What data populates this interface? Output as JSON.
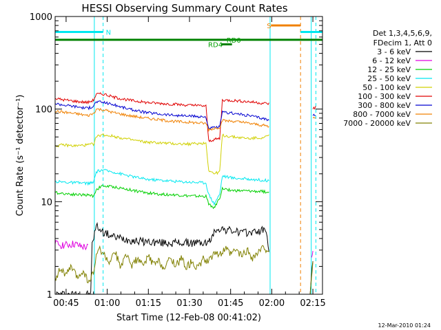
{
  "chart_data": {
    "type": "line",
    "title": "HESSI Observing Summary Count Rates",
    "xlabel": "Start Time (12-Feb-08 00:41:02)",
    "ylabel": "Count Rate (s⁻¹ detector⁻¹)",
    "ylog": true,
    "ylim": [
      1,
      1000
    ],
    "xlim_minutes": [
      41.0,
      138.5
    ],
    "x_ticks": [
      {
        "label": "00:45",
        "value": 45
      },
      {
        "label": "01:00",
        "value": 60
      },
      {
        "label": "01:15",
        "value": 75
      },
      {
        "label": "01:30",
        "value": 90
      },
      {
        "label": "01:45",
        "value": 105
      },
      {
        "label": "02:00",
        "value": 120
      },
      {
        "label": "02:15",
        "value": 135
      }
    ],
    "y_ticks": [
      {
        "label": "1",
        "value": 1
      },
      {
        "label": "10",
        "value": 10
      },
      {
        "label": "100",
        "value": 100
      },
      {
        "label": "1000",
        "value": 1000
      }
    ],
    "legend": {
      "position": "right",
      "header": [
        "Det 1,3,4,5,6,9,",
        "FDecim 1, Att 0"
      ],
      "entries": [
        {
          "label": "3 - 6 keV",
          "color": "#000000"
        },
        {
          "label": "6 - 12 keV",
          "color": "#e000e0"
        },
        {
          "label": "12 - 25 keV",
          "color": "#00d000"
        },
        {
          "label": "25 - 50 keV",
          "color": "#00e8f0"
        },
        {
          "label": "50 - 100 keV",
          "color": "#d0d000"
        },
        {
          "label": "100 - 300 keV",
          "color": "#e00000"
        },
        {
          "label": "300 - 800 keV",
          "color": "#0000d0"
        },
        {
          "label": "800 - 7000 keV",
          "color": "#f08000"
        },
        {
          "label": "7000 - 20000 keV",
          "color": "#808000"
        }
      ]
    },
    "series": [
      {
        "name": "3 - 6 keV",
        "color": "#000000",
        "segments": [
          [
            [
              41,
              1.0
            ],
            [
              54,
              1.0
            ],
            [
              54.5,
              3.5
            ],
            [
              56,
              5.5
            ],
            [
              57,
              5.2
            ],
            [
              58,
              4.8
            ],
            [
              62,
              4.2
            ],
            [
              70,
              3.8
            ],
            [
              80,
              3.6
            ],
            [
              90,
              3.6
            ],
            [
              97,
              3.6
            ],
            [
              99,
              4.6
            ],
            [
              100,
              5.2
            ],
            [
              103,
              5.0
            ],
            [
              110,
              4.6
            ],
            [
              115,
              4.8
            ],
            [
              118,
              5.0
            ],
            [
              119,
              3.0
            ]
          ],
          [
            [
              134,
              1.0
            ],
            [
              135,
              2.5
            ]
          ]
        ]
      },
      {
        "name": "6 - 12 keV",
        "color": "#e000e0",
        "segments": [
          [
            [
              41,
              3.5
            ],
            [
              45,
              3.4
            ],
            [
              48,
              3.5
            ],
            [
              50,
              3.3
            ],
            [
              53,
              3.2
            ]
          ],
          [
            [
              134.5,
              2.5
            ],
            [
              135,
              2.8
            ]
          ]
        ]
      },
      {
        "name": "12 - 25 keV",
        "color": "#00d000",
        "segments": [
          [
            [
              41,
              12.5
            ],
            [
              48,
              12.0
            ],
            [
              53,
              11.8
            ],
            [
              55,
              11.5
            ],
            [
              56,
              13.5
            ],
            [
              58,
              14.8
            ],
            [
              62,
              14.5
            ],
            [
              68,
              13.5
            ],
            [
              74,
              12.5
            ],
            [
              80,
              12.0
            ],
            [
              86,
              11.8
            ],
            [
              90,
              11.5
            ],
            [
              96,
              11.4
            ],
            [
              97,
              9.5
            ],
            [
              99,
              8.5
            ],
            [
              101,
              11.0
            ],
            [
              102,
              13.8
            ],
            [
              106,
              13.2
            ],
            [
              112,
              13.0
            ],
            [
              118,
              12.8
            ],
            [
              119,
              12.5
            ]
          ]
        ]
      },
      {
        "name": "25 - 50 keV",
        "color": "#00e8f0",
        "segments": [
          [
            [
              41,
              16.5
            ],
            [
              48,
              16.0
            ],
            [
              53,
              15.8
            ],
            [
              55,
              16.0
            ],
            [
              56,
              21.0
            ],
            [
              58,
              22.0
            ],
            [
              62,
              21.0
            ],
            [
              68,
              19.0
            ],
            [
              74,
              17.5
            ],
            [
              80,
              17.0
            ],
            [
              86,
              16.5
            ],
            [
              90,
              16.3
            ],
            [
              96,
              16.0
            ],
            [
              97,
              12.0
            ],
            [
              99,
              9.5
            ],
            [
              101,
              12.0
            ],
            [
              102,
              19.0
            ],
            [
              106,
              18.0
            ],
            [
              112,
              17.5
            ],
            [
              118,
              17.0
            ],
            [
              119,
              16.5
            ]
          ]
        ]
      },
      {
        "name": "50 - 100 keV",
        "color": "#d0d000",
        "segments": [
          [
            [
              41,
              40
            ],
            [
              44,
              41
            ],
            [
              48,
              40
            ],
            [
              53,
              41
            ],
            [
              55,
              42
            ],
            [
              56,
              50
            ],
            [
              58,
              53
            ],
            [
              62,
              51
            ],
            [
              68,
              47
            ],
            [
              74,
              44
            ],
            [
              80,
              43
            ],
            [
              86,
              42
            ],
            [
              90,
              42
            ],
            [
              96,
              43
            ],
            [
              97,
              22
            ],
            [
              99,
              20
            ],
            [
              101,
              21
            ],
            [
              102,
              52
            ],
            [
              106,
              50
            ],
            [
              112,
              48
            ],
            [
              118,
              50
            ],
            [
              119,
              52
            ]
          ]
        ]
      },
      {
        "name": "100 - 300 keV",
        "color": "#e00000",
        "segments": [
          [
            [
              41,
              130
            ],
            [
              45,
              125
            ],
            [
              50,
              120
            ],
            [
              53,
              118
            ],
            [
              55,
              125
            ],
            [
              56,
              145
            ],
            [
              59,
              145
            ],
            [
              62,
              135
            ],
            [
              68,
              125
            ],
            [
              74,
              118
            ],
            [
              80,
              115
            ],
            [
              86,
              112
            ],
            [
              90,
              110
            ],
            [
              96,
              108
            ],
            [
              97,
              45
            ],
            [
              99,
              47
            ],
            [
              101,
              48
            ],
            [
              102,
              125
            ],
            [
              106,
              124
            ],
            [
              112,
              120
            ],
            [
              118,
              115
            ],
            [
              119,
              115
            ]
          ],
          [
            [
              135,
              100
            ],
            [
              136,
              105
            ]
          ]
        ]
      },
      {
        "name": "300 - 800 keV",
        "color": "#0000d0",
        "segments": [
          [
            [
              41,
              115
            ],
            [
              45,
              110
            ],
            [
              50,
              105
            ],
            [
              53,
              102
            ],
            [
              55,
              108
            ],
            [
              56,
              120
            ],
            [
              59,
              118
            ],
            [
              62,
              112
            ],
            [
              68,
              100
            ],
            [
              74,
              92
            ],
            [
              80,
              88
            ],
            [
              86,
              85
            ],
            [
              90,
              84
            ],
            [
              96,
              82
            ],
            [
              97,
              62
            ],
            [
              99,
              63
            ],
            [
              101,
              64
            ],
            [
              102,
              92
            ],
            [
              106,
              90
            ],
            [
              112,
              85
            ],
            [
              118,
              78
            ],
            [
              119,
              75
            ]
          ],
          [
            [
              135,
              85
            ],
            [
              136,
              88
            ]
          ]
        ]
      },
      {
        "name": "800 - 7000 keV",
        "color": "#f08000",
        "segments": [
          [
            [
              41,
              95
            ],
            [
              45,
              92
            ],
            [
              50,
              88
            ],
            [
              53,
              85
            ],
            [
              55,
              90
            ],
            [
              56,
              100
            ],
            [
              59,
              98
            ],
            [
              62,
              92
            ],
            [
              68,
              85
            ],
            [
              74,
              80
            ],
            [
              80,
              76
            ],
            [
              86,
              73
            ],
            [
              90,
              72
            ],
            [
              96,
              70
            ],
            [
              97,
              60
            ],
            [
              99,
              62
            ],
            [
              101,
              64
            ],
            [
              102,
              75
            ],
            [
              106,
              74
            ],
            [
              112,
              70
            ],
            [
              118,
              66
            ],
            [
              119,
              64
            ]
          ],
          [
            [
              135,
              80
            ],
            [
              136,
              82
            ]
          ]
        ]
      },
      {
        "name": "7000 - 20000 keV",
        "color": "#808000",
        "segments": [
          [
            [
              41,
              1.5
            ],
            [
              43,
              1.9
            ],
            [
              45,
              1.6
            ],
            [
              47,
              2.0
            ],
            [
              49,
              1.5
            ],
            [
              51,
              1.8
            ],
            [
              53,
              1.4
            ],
            [
              54,
              1.5
            ],
            [
              55,
              1.7
            ],
            [
              56,
              2.5
            ],
            [
              57,
              3.2
            ],
            [
              59,
              2.6
            ],
            [
              61,
              2.2
            ],
            [
              63,
              2.8
            ],
            [
              65,
              2.0
            ],
            [
              67,
              2.6
            ],
            [
              69,
              2.1
            ],
            [
              71,
              2.4
            ],
            [
              73,
              2.0
            ],
            [
              75,
              2.6
            ],
            [
              77,
              2.1
            ],
            [
              79,
              2.3
            ],
            [
              81,
              1.9
            ],
            [
              83,
              2.5
            ],
            [
              85,
              2.1
            ],
            [
              87,
              2.4
            ],
            [
              89,
              2.0
            ],
            [
              91,
              2.3
            ],
            [
              93,
              1.9
            ],
            [
              95,
              2.4
            ],
            [
              97,
              2.2
            ],
            [
              99,
              3.0
            ],
            [
              101,
              2.6
            ],
            [
              103,
              3.1
            ],
            [
              105,
              2.7
            ],
            [
              107,
              3.0
            ],
            [
              109,
              2.6
            ],
            [
              111,
              3.0
            ],
            [
              113,
              2.5
            ],
            [
              115,
              2.8
            ],
            [
              117,
              3.2
            ],
            [
              119,
              3.0
            ]
          ],
          [
            [
              134,
              1.0
            ],
            [
              135,
              2.3
            ]
          ]
        ]
      }
    ],
    "vertical_markers": [
      {
        "x": 55.3,
        "color": "#00e8f0",
        "style": "solid"
      },
      {
        "x": 58.5,
        "color": "#00e8f0",
        "style": "dashed"
      },
      {
        "x": 119.4,
        "color": "#00e8f0",
        "style": "solid"
      },
      {
        "x": 130.5,
        "color": "#f08000",
        "style": "dashed"
      },
      {
        "x": 134.4,
        "color": "#00e8f0",
        "style": "solid"
      },
      {
        "x": 136.1,
        "color": "#00e8f0",
        "style": "dashed"
      }
    ],
    "flag_bars": [
      {
        "label": "N",
        "label_color": "#00e8f0",
        "color": "#00e8f0",
        "y": 680,
        "segments": [
          [
            41,
            58.5
          ]
        ],
        "label_at": 59.5
      },
      {
        "label": "",
        "label_color": "#00e8f0",
        "color": "#00e8f0",
        "y": 680,
        "segments": [
          [
            130.5,
            138.5
          ]
        ]
      },
      {
        "label": "S",
        "label_color": "#f08000",
        "color": "#f08000",
        "y": 800,
        "segments": [
          [
            119.7,
            130.5
          ]
        ],
        "label_at": 118.2
      },
      {
        "label": "",
        "label_color": "#00a000",
        "color": "#008000",
        "y": 560,
        "segments": [
          [
            41,
            138.5
          ]
        ]
      },
      {
        "label": "RD0",
        "label_color": "#00a000",
        "color": "#008000",
        "y": 560,
        "segments": [],
        "label_at": 103.5
      },
      {
        "label": "RD4",
        "label_color": "#00a000",
        "color": "#008000",
        "y": 500,
        "segments": [
          [
            101.5,
            105.5
          ]
        ],
        "label_at": 96.8
      }
    ],
    "grid": false
  },
  "footer": {
    "timestamp": "12-Mar-2010 01:24"
  }
}
